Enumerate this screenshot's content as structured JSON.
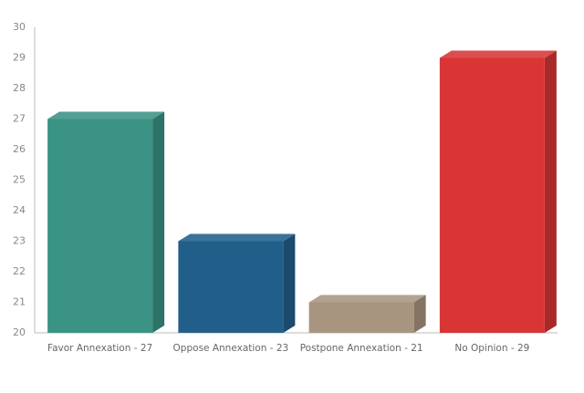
{
  "chart_data": {
    "type": "bar3d",
    "categories": [
      "Favor Annexation - 27",
      "Oppose Annexation - 23",
      "Postpone Annexation - 21",
      "No Opinion - 29"
    ],
    "values": [
      27,
      23,
      21,
      29
    ],
    "colors": [
      "#3a9384",
      "#215f8a",
      "#a89580",
      "#d93535"
    ],
    "ylim": [
      20,
      30
    ],
    "yticks": [
      20,
      21,
      22,
      23,
      24,
      25,
      26,
      27,
      28,
      29,
      30
    ],
    "grid": false
  }
}
